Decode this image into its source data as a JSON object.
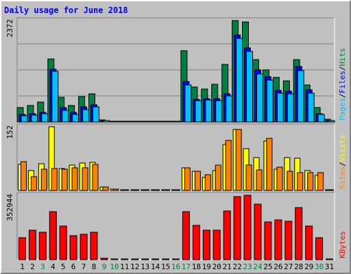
{
  "chart_data": {
    "type": "bar",
    "title": "Daily usage for June 2018",
    "categories": [
      "1",
      "2",
      "3",
      "4",
      "5",
      "6",
      "7",
      "8",
      "9",
      "10",
      "11",
      "12",
      "13",
      "14",
      "15",
      "16",
      "17",
      "18",
      "19",
      "20",
      "21",
      "22",
      "23",
      "24",
      "25",
      "26",
      "27",
      "28",
      "29",
      "30",
      "31"
    ],
    "weekend_days": [
      "3",
      "9",
      "10",
      "16",
      "17",
      "23",
      "24",
      "30"
    ],
    "panels": [
      {
        "id": "top",
        "max_label": "2372",
        "ymax": 2372,
        "legend": [
          {
            "text": "Pages",
            "color": "#00c0ff"
          },
          {
            "text": "/",
            "color": "#000000"
          },
          {
            "text": "Files",
            "color": "#0000ff"
          },
          {
            "text": "/",
            "color": "#000000"
          },
          {
            "text": "Hits",
            "color": "#008040"
          }
        ],
        "series": [
          {
            "name": "Hits",
            "color": "#008040",
            "values": [
              340,
              380,
              460,
              1470,
              570,
              390,
              600,
              660,
              50,
              20,
              0,
              0,
              0,
              0,
              0,
              0,
              1670,
              810,
              770,
              880,
              1340,
              2370,
              2340,
              1460,
              1220,
              1040,
              960,
              1460,
              860,
              340,
              60
            ]
          },
          {
            "name": "Files",
            "color": "#0000ff",
            "values": [
              170,
              200,
              230,
              1230,
              340,
              220,
              350,
              400,
              40,
              10,
              0,
              0,
              0,
              0,
              0,
              0,
              940,
              530,
              550,
              540,
              660,
              2030,
              1730,
              1220,
              1050,
              730,
              720,
              1300,
              750,
              200,
              40
            ]
          },
          {
            "name": "Pages",
            "color": "#00c0ff",
            "values": [
              140,
              160,
              200,
              1180,
              280,
              180,
              290,
              350,
              30,
              10,
              0,
              0,
              0,
              0,
              0,
              0,
              870,
              500,
              510,
              500,
              610,
              1950,
              1650,
              1120,
              980,
              680,
              660,
              1210,
              670,
              170,
              30
            ]
          }
        ]
      },
      {
        "id": "mid",
        "max_label": "152",
        "ymax": 152,
        "legend": [
          {
            "text": "Sites",
            "color": "#ff8000"
          },
          {
            "text": "/",
            "color": "#000000"
          },
          {
            "text": "Visits",
            "color": "#ffff00"
          }
        ],
        "series": [
          {
            "name": "Visits",
            "color": "#ffff00",
            "values": [
              62,
              48,
              63,
              152,
              52,
              60,
              65,
              67,
              8,
              3,
              0,
              0,
              0,
              0,
              0,
              0,
              54,
              46,
              31,
              47,
              110,
              145,
              100,
              79,
              118,
              51,
              78,
              76,
              47,
              36,
              0
            ]
          },
          {
            "name": "Sites",
            "color": "#ff8000",
            "values": [
              68,
              32,
              50,
              52,
              50,
              54,
              54,
              62,
              8,
              3,
              0,
              0,
              0,
              0,
              0,
              0,
              54,
              46,
              38,
              60,
              120,
              145,
              60,
              49,
              124,
              55,
              45,
              43,
              43,
              42,
              0
            ]
          }
        ]
      },
      {
        "id": "bot",
        "max_label": "352944",
        "ymax": 352944,
        "legend": [
          {
            "text": "KBytes",
            "color": "#ff0000"
          }
        ],
        "series": [
          {
            "name": "KBytes",
            "color": "#ff0000",
            "values": [
              120000,
              160000,
              150000,
              263000,
              185000,
              130000,
              140000,
              150000,
              8000,
              3000,
              0,
              0,
              0,
              0,
              0,
              0,
              261000,
              188000,
              160000,
              162000,
              268000,
              346000,
              352944,
              304000,
              208000,
              216000,
              210000,
              287000,
              185000,
              122000,
              0
            ]
          }
        ]
      }
    ]
  },
  "colors": {
    "background": "#c0c0c0",
    "grid": "#808080",
    "title": "#0000ff",
    "weekday_label": "#000000",
    "weekend_label": "#008040"
  }
}
